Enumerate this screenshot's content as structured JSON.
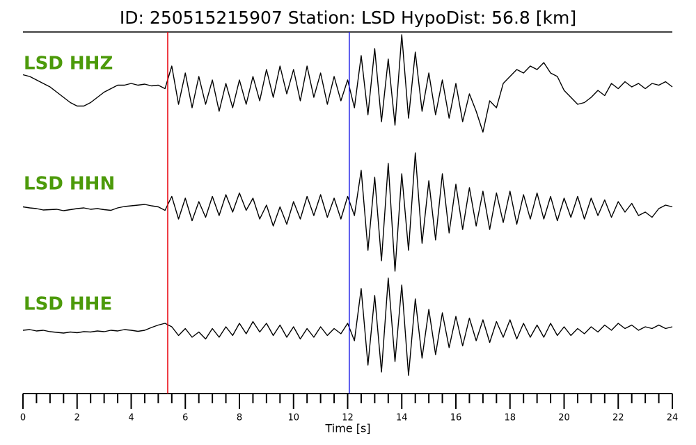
{
  "chart_data": {
    "type": "line",
    "title": "ID: 250515215907   Station: LSD   HypoDist:    56.8 [km]",
    "xlabel": "Time [s]",
    "xlim": [
      0,
      24
    ],
    "xticks": [
      0,
      2,
      4,
      6,
      8,
      10,
      12,
      14,
      16,
      18,
      20,
      22,
      24
    ],
    "xminorticks": [
      0.5,
      1,
      1.5,
      2.5,
      3,
      3.5,
      4.5,
      5,
      5.5,
      6.5,
      7,
      7.5,
      8.5,
      9,
      9.5,
      10.5,
      11,
      11.5,
      12.5,
      13,
      13.5,
      14.5,
      15,
      15.5,
      16.5,
      17,
      17.5,
      18.5,
      19,
      19.5,
      20.5,
      21,
      21.5,
      22.5,
      23,
      23.5
    ],
    "ylim": [
      -1.6,
      1.6
    ],
    "label_color": "#4c9a0a",
    "markers": [
      {
        "x": 5.35,
        "color": "#e8000b"
      },
      {
        "x": 12.06,
        "color": "#1a1ae6"
      }
    ],
    "x": [
      0,
      0.25,
      0.5,
      0.75,
      1,
      1.25,
      1.5,
      1.75,
      2,
      2.25,
      2.5,
      2.75,
      3,
      3.25,
      3.5,
      3.75,
      4,
      4.25,
      4.5,
      4.75,
      5,
      5.25,
      5.5,
      5.75,
      6,
      6.25,
      6.5,
      6.75,
      7,
      7.25,
      7.5,
      7.75,
      8,
      8.25,
      8.5,
      8.75,
      9,
      9.25,
      9.5,
      9.75,
      10,
      10.25,
      10.5,
      10.75,
      11,
      11.25,
      11.5,
      11.75,
      12,
      12.25,
      12.5,
      12.75,
      13,
      13.25,
      13.5,
      13.75,
      14,
      14.25,
      14.5,
      14.75,
      15,
      15.25,
      15.5,
      15.75,
      16,
      16.25,
      16.5,
      16.75,
      17,
      17.25,
      17.5,
      17.75,
      18,
      18.25,
      18.5,
      18.75,
      19,
      19.25,
      19.5,
      19.75,
      20,
      20.25,
      20.5,
      20.75,
      21,
      21.25,
      21.5,
      21.75,
      22,
      22.25,
      22.5,
      22.75,
      23,
      23.25,
      23.5,
      23.75,
      24
    ],
    "series": [
      {
        "name": "LSD HHZ",
        "color": "#000000",
        "values": [
          0.35,
          0.3,
          0.2,
          0.1,
          0,
          -0.15,
          -0.3,
          -0.45,
          -0.55,
          -0.55,
          -0.45,
          -0.3,
          -0.15,
          -0.05,
          0.05,
          0.05,
          0.1,
          0.05,
          0.08,
          0.03,
          0.05,
          -0.05,
          0.6,
          -0.5,
          0.4,
          -0.6,
          0.3,
          -0.5,
          0.2,
          -0.7,
          0.1,
          -0.6,
          0.2,
          -0.5,
          0.3,
          -0.4,
          0.5,
          -0.3,
          0.6,
          -0.2,
          0.5,
          -0.4,
          0.6,
          -0.3,
          0.4,
          -0.5,
          0.3,
          -0.4,
          0.2,
          -0.6,
          0.9,
          -0.8,
          1.1,
          -1.0,
          0.8,
          -1.1,
          1.5,
          -0.9,
          1.0,
          -0.7,
          0.4,
          -0.8,
          0.2,
          -0.9,
          0.1,
          -1.0,
          -0.2,
          -0.7,
          -1.3,
          -0.4,
          -0.6,
          0.1,
          0.3,
          0.5,
          0.4,
          0.6,
          0.5,
          0.7,
          0.4,
          0.3,
          -0.1,
          -0.3,
          -0.5,
          -0.45,
          -0.3,
          -0.1,
          -0.25,
          0.1,
          -0.05,
          0.15,
          0,
          0.1,
          -0.05,
          0.1,
          0.05,
          0.15,
          0
        ]
      },
      {
        "name": "LSD HHN",
        "color": "#000000",
        "values": [
          0.05,
          0.02,
          0,
          -0.04,
          -0.03,
          -0.02,
          -0.06,
          -0.03,
          0,
          0.02,
          -0.02,
          0,
          -0.03,
          -0.05,
          0.02,
          0.06,
          0.08,
          0.1,
          0.12,
          0.08,
          0.05,
          -0.05,
          0.35,
          -0.3,
          0.3,
          -0.35,
          0.2,
          -0.25,
          0.35,
          -0.2,
          0.4,
          -0.1,
          0.45,
          -0.05,
          0.3,
          -0.3,
          0.1,
          -0.5,
          0.05,
          -0.45,
          0.2,
          -0.3,
          0.35,
          -0.2,
          0.4,
          -0.25,
          0.3,
          -0.3,
          0.35,
          -0.2,
          1.1,
          -1.2,
          0.9,
          -1.5,
          1.3,
          -1.8,
          1.0,
          -1.2,
          1.6,
          -1.0,
          0.8,
          -0.9,
          1.0,
          -0.7,
          0.7,
          -0.6,
          0.6,
          -0.5,
          0.5,
          -0.6,
          0.45,
          -0.4,
          0.5,
          -0.45,
          0.4,
          -0.3,
          0.45,
          -0.3,
          0.35,
          -0.35,
          0.3,
          -0.25,
          0.35,
          -0.3,
          0.3,
          -0.2,
          0.25,
          -0.25,
          0.2,
          -0.1,
          0.15,
          -0.2,
          -0.1,
          -0.25,
          0,
          0.1,
          0.05
        ]
      },
      {
        "name": "LSD HHE",
        "color": "#000000",
        "values": [
          0,
          0.02,
          -0.02,
          0,
          -0.04,
          -0.06,
          -0.08,
          -0.05,
          -0.07,
          -0.04,
          -0.05,
          -0.02,
          -0.04,
          0,
          -0.02,
          0.02,
          0,
          -0.03,
          0,
          0.08,
          0.15,
          0.2,
          0.1,
          -0.15,
          0.05,
          -0.2,
          -0.05,
          -0.25,
          0.05,
          -0.2,
          0.1,
          -0.15,
          0.2,
          -0.1,
          0.25,
          -0.05,
          0.2,
          -0.15,
          0.15,
          -0.2,
          0.1,
          -0.25,
          0.05,
          -0.2,
          0.1,
          -0.15,
          0.05,
          -0.1,
          0.2,
          -0.3,
          1.2,
          -1.0,
          1.0,
          -1.2,
          1.5,
          -0.9,
          1.3,
          -1.3,
          0.9,
          -0.8,
          0.6,
          -0.7,
          0.5,
          -0.5,
          0.4,
          -0.45,
          0.35,
          -0.3,
          0.3,
          -0.35,
          0.25,
          -0.2,
          0.3,
          -0.25,
          0.2,
          -0.2,
          0.15,
          -0.2,
          0.2,
          -0.15,
          0.1,
          -0.15,
          0.05,
          -0.1,
          0.1,
          -0.05,
          0.15,
          0,
          0.2,
          0.05,
          0.15,
          0,
          0.1,
          0.05,
          0.15,
          0.05,
          0.1
        ]
      }
    ]
  }
}
